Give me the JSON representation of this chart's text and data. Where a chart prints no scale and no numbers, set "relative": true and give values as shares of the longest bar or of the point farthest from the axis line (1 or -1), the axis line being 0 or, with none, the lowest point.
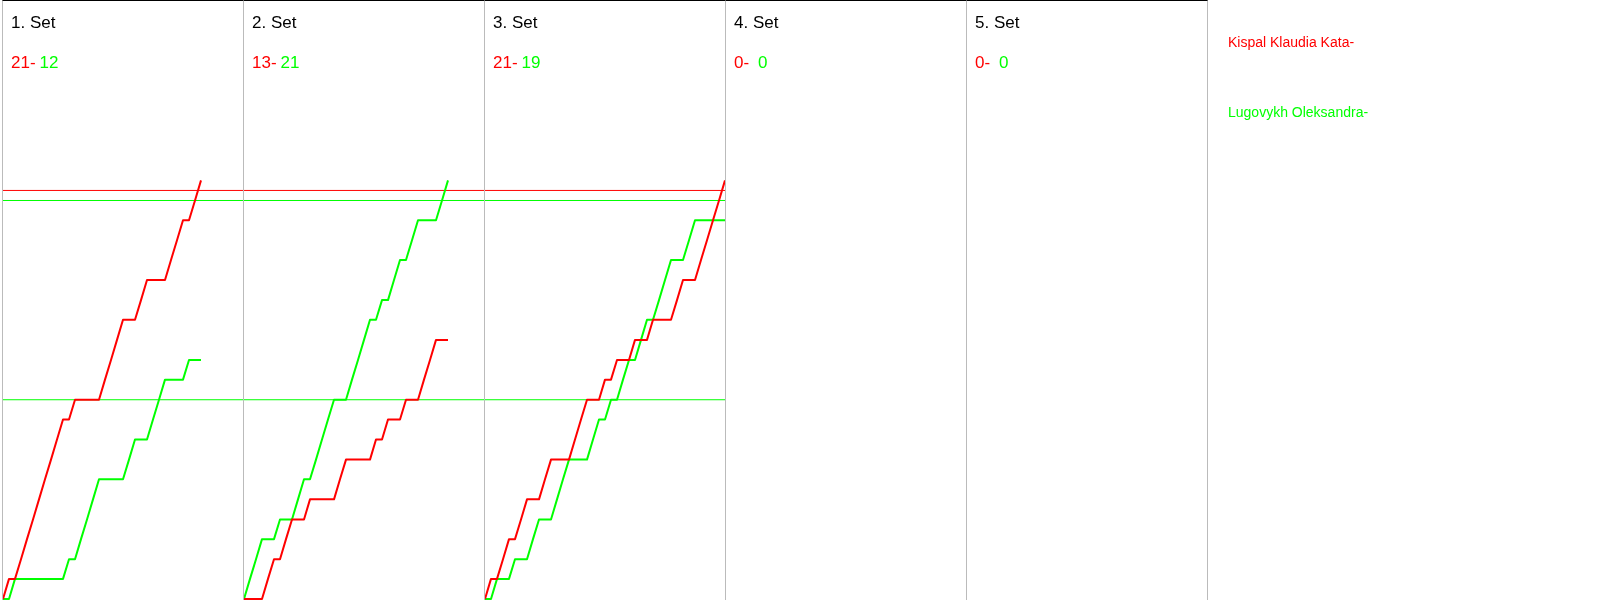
{
  "chart_data": [
    {
      "type": "line",
      "title": "1. Set",
      "annotations": [
        "21-",
        "12"
      ],
      "relative": true,
      "ref_lines": [
        {
          "axis": "y",
          "value": 0.976,
          "color": "#ff0000"
        },
        {
          "axis": "y",
          "value": 0.952,
          "color": "#00ff00"
        },
        {
          "axis": "y",
          "value": 0.476,
          "color": "#00ff00"
        }
      ],
      "categories": [
        null,
        null,
        null,
        null,
        null,
        null,
        null,
        null,
        null,
        null,
        null,
        null,
        null,
        null,
        null,
        null,
        null,
        null,
        null,
        null,
        null,
        null,
        null,
        null,
        null,
        null,
        null,
        null,
        null,
        null,
        null,
        null,
        null,
        null
      ],
      "series": [
        {
          "name": "Kispal Klaudia Kata-",
          "color": "#ff0000",
          "values": [
            0,
            0.048,
            0.048,
            0.095,
            0.143,
            0.19,
            0.238,
            0.286,
            0.333,
            0.381,
            0.429,
            0.429,
            0.476,
            0.476,
            0.476,
            0.476,
            0.476,
            0.524,
            0.571,
            0.619,
            0.667,
            0.667,
            0.667,
            0.714,
            0.762,
            0.762,
            0.762,
            0.762,
            0.81,
            0.857,
            0.905,
            0.905,
            0.952,
            1
          ]
        },
        {
          "name": "Lugovykh Oleksandra-",
          "color": "#00ff00",
          "values": [
            0,
            0,
            0.048,
            0.048,
            0.048,
            0.048,
            0.048,
            0.048,
            0.048,
            0.048,
            0.048,
            0.095,
            0.095,
            0.143,
            0.19,
            0.238,
            0.286,
            0.286,
            0.286,
            0.286,
            0.286,
            0.333,
            0.381,
            0.381,
            0.381,
            0.429,
            0.476,
            0.524,
            0.524,
            0.524,
            0.524,
            0.571,
            0.571,
            0.571
          ]
        }
      ]
    },
    {
      "type": "line",
      "title": "2. Set",
      "annotations": [
        "13-",
        "21"
      ],
      "relative": true,
      "ref_lines": [
        {
          "axis": "y",
          "value": 0.976,
          "color": "#ff0000"
        },
        {
          "axis": "y",
          "value": 0.952,
          "color": "#00ff00"
        },
        {
          "axis": "y",
          "value": 0.476,
          "color": "#00ff00"
        }
      ],
      "categories": [
        null,
        null,
        null,
        null,
        null,
        null,
        null,
        null,
        null,
        null,
        null,
        null,
        null,
        null,
        null,
        null,
        null,
        null,
        null,
        null,
        null,
        null,
        null,
        null,
        null,
        null,
        null,
        null,
        null,
        null,
        null,
        null,
        null,
        null,
        null
      ],
      "series": [
        {
          "color": "#ff0000",
          "values": [
            0,
            0,
            0,
            0,
            0.048,
            0.095,
            0.095,
            0.143,
            0.19,
            0.19,
            0.19,
            0.238,
            0.238,
            0.238,
            0.238,
            0.238,
            0.286,
            0.333,
            0.333,
            0.333,
            0.333,
            0.333,
            0.381,
            0.381,
            0.429,
            0.429,
            0.429,
            0.476,
            0.476,
            0.476,
            0.524,
            0.571,
            0.619,
            0.619,
            0.619
          ]
        },
        {
          "color": "#00ff00",
          "values": [
            0,
            0.048,
            0.095,
            0.143,
            0.143,
            0.143,
            0.19,
            0.19,
            0.19,
            0.238,
            0.286,
            0.286,
            0.333,
            0.381,
            0.429,
            0.476,
            0.476,
            0.476,
            0.524,
            0.571,
            0.619,
            0.667,
            0.667,
            0.714,
            0.714,
            0.762,
            0.81,
            0.81,
            0.857,
            0.905,
            0.905,
            0.905,
            0.905,
            0.952,
            1
          ]
        }
      ]
    },
    {
      "type": "line",
      "title": "3. Set",
      "annotations": [
        "21-",
        "19"
      ],
      "relative": true,
      "ref_lines": [
        {
          "axis": "y",
          "value": 0.976,
          "color": "#ff0000"
        },
        {
          "axis": "y",
          "value": 0.952,
          "color": "#00ff00"
        },
        {
          "axis": "y",
          "value": 0.476,
          "color": "#00ff00"
        }
      ],
      "categories": [
        null,
        null,
        null,
        null,
        null,
        null,
        null,
        null,
        null,
        null,
        null,
        null,
        null,
        null,
        null,
        null,
        null,
        null,
        null,
        null,
        null,
        null,
        null,
        null,
        null,
        null,
        null,
        null,
        null,
        null,
        null,
        null,
        null,
        null,
        null,
        null,
        null,
        null,
        null,
        null,
        null
      ],
      "series": [
        {
          "color": "#ff0000",
          "values": [
            0,
            0.048,
            0.048,
            0.095,
            0.143,
            0.143,
            0.19,
            0.238,
            0.238,
            0.238,
            0.286,
            0.333,
            0.333,
            0.333,
            0.333,
            0.381,
            0.429,
            0.476,
            0.476,
            0.476,
            0.524,
            0.524,
            0.571,
            0.571,
            0.571,
            0.619,
            0.619,
            0.619,
            0.667,
            0.667,
            0.667,
            0.667,
            0.714,
            0.762,
            0.762,
            0.762,
            0.81,
            0.857,
            0.905,
            0.952,
            1
          ]
        },
        {
          "color": "#00ff00",
          "values": [
            0,
            0,
            0.048,
            0.048,
            0.048,
            0.095,
            0.095,
            0.095,
            0.143,
            0.19,
            0.19,
            0.19,
            0.238,
            0.286,
            0.333,
            0.333,
            0.333,
            0.333,
            0.381,
            0.429,
            0.429,
            0.476,
            0.476,
            0.524,
            0.571,
            0.571,
            0.619,
            0.667,
            0.667,
            0.714,
            0.762,
            0.81,
            0.81,
            0.81,
            0.857,
            0.905,
            0.905,
            0.905,
            0.905,
            0.905,
            0.905
          ]
        }
      ]
    },
    {
      "type": "other",
      "title": "4. Set",
      "annotations": [
        "0-",
        "0"
      ]
    },
    {
      "type": "other",
      "title": "5. Set",
      "annotations": [
        "0-",
        "0"
      ]
    }
  ]
}
